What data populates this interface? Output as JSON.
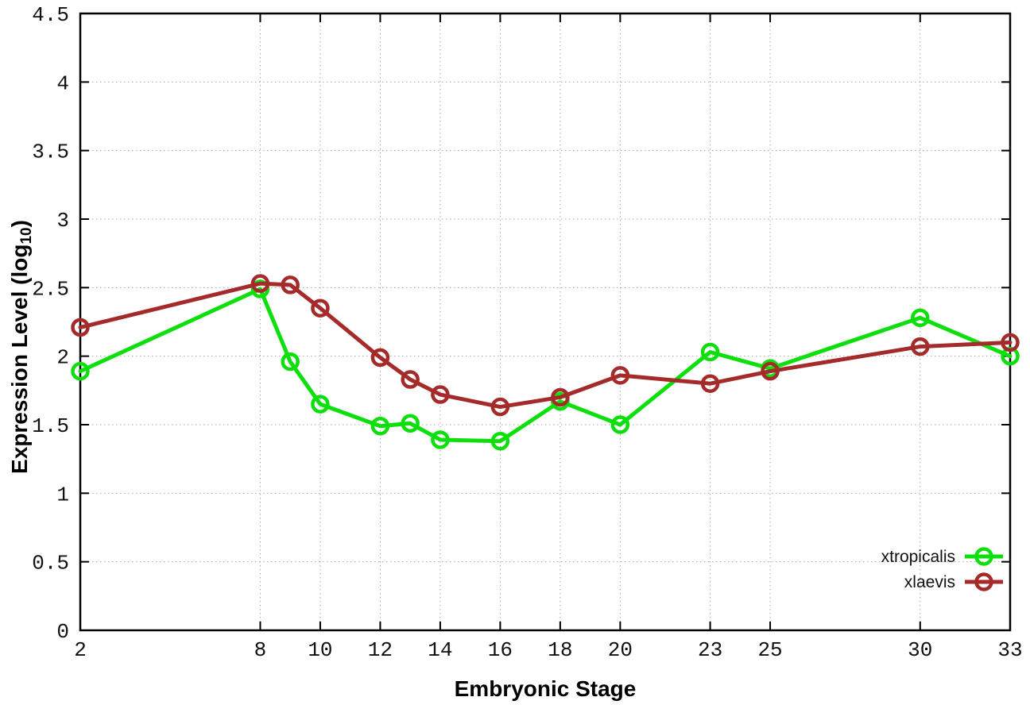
{
  "figure": {
    "background": "#ffffff",
    "xlabel": "Embryonic Stage",
    "ylabel_prefix": "Expression Level (log",
    "ylabel_sub": "10",
    "ylabel_suffix": ")"
  },
  "chart_data": {
    "type": "line",
    "title": "",
    "xlabel": "Embryonic Stage",
    "ylabel": "Expression Level (log10)",
    "x": [
      2,
      8,
      9,
      10,
      12,
      13,
      14,
      16,
      18,
      20,
      23,
      25,
      30,
      33
    ],
    "series": [
      {
        "name": "xtropicalis",
        "color": "#0ddf0d",
        "marker": "open-circle",
        "values": [
          1.89,
          2.49,
          1.96,
          1.65,
          1.49,
          1.51,
          1.39,
          1.38,
          1.67,
          1.5,
          2.03,
          1.91,
          2.28,
          2.0
        ]
      },
      {
        "name": "xlaevis",
        "color": "#a52a2a",
        "marker": "open-circle",
        "values": [
          2.21,
          2.53,
          2.52,
          2.35,
          1.99,
          1.83,
          1.72,
          1.63,
          1.7,
          1.86,
          1.8,
          1.89,
          2.07,
          2.1
        ]
      }
    ],
    "x_ticks": {
      "values": [
        2,
        8,
        10,
        12,
        14,
        16,
        18,
        20,
        23,
        25,
        30,
        33
      ],
      "labels": [
        "2",
        "8",
        "10",
        "12",
        "14",
        "16",
        "18",
        "20",
        "23",
        "25",
        "30",
        "33"
      ]
    },
    "y_ticks": {
      "values": [
        0,
        0.5,
        1,
        1.5,
        2,
        2.5,
        3,
        3.5,
        4,
        4.5
      ],
      "labels": [
        "0",
        "0.5",
        "1",
        "1.5",
        "2",
        "2.5",
        "3",
        "3.5",
        "4",
        "4.5"
      ]
    },
    "xlim": [
      2,
      33
    ],
    "ylim": [
      0,
      4.5
    ],
    "grid": true,
    "grid_style": "dotted",
    "grid_color": "#a8a8a8",
    "axis_color": "#000000",
    "legend_position": "inside-bottom-right"
  }
}
